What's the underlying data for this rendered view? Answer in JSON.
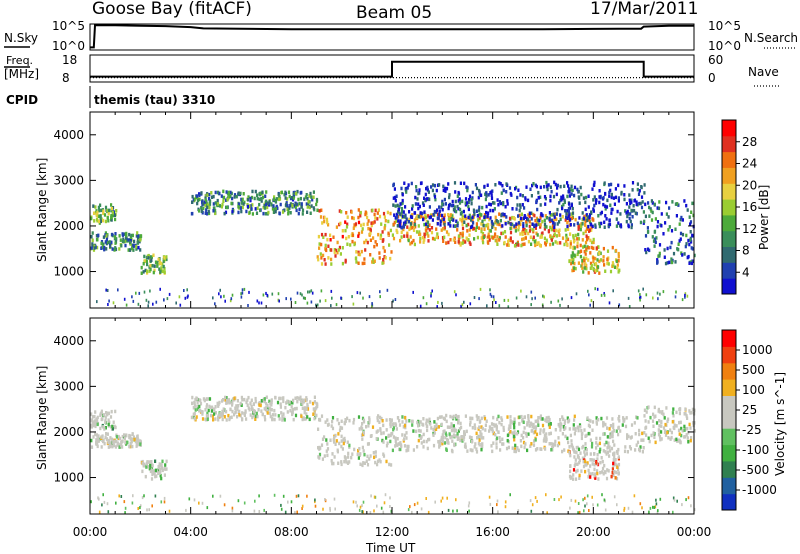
{
  "header": {
    "station": "Goose Bay (fitACF)",
    "beam": "Beam 05",
    "date": "17/Mar/2011"
  },
  "noise_panel": {
    "left_label": "N.Sky",
    "left_ticks": [
      "10^5",
      "10^0"
    ],
    "right_label": "N.Search",
    "right_ticks": [
      "10^5",
      "10^0"
    ]
  },
  "freq_panel": {
    "left_label_1": "Freq.",
    "left_label_2": "[MHz]",
    "left_ticks": [
      "18",
      "8"
    ],
    "right_label": "Nave",
    "right_ticks": [
      "60",
      "0"
    ]
  },
  "cpid": {
    "label": "CPID",
    "value": "themis (tau) 3310"
  },
  "chart_data": [
    {
      "type": "line",
      "title": "N.Sky / N.Search",
      "x_unit": "hours UT",
      "series": [
        {
          "name": "N.Sky",
          "x": [
            0,
            0.15,
            0.2,
            1,
            2,
            3,
            4,
            4.5,
            6,
            8,
            10,
            12,
            14,
            16,
            18,
            20,
            21,
            21.9,
            22,
            23,
            24
          ],
          "y": [
            0.1,
            0.1,
            0.95,
            0.95,
            0.93,
            0.92,
            0.88,
            0.83,
            0.82,
            0.8,
            0.8,
            0.8,
            0.8,
            0.8,
            0.8,
            0.81,
            0.82,
            0.82,
            0.9,
            0.93,
            0.93
          ]
        }
      ]
    },
    {
      "type": "line",
      "title": "Freq / Nave",
      "x_unit": "hours UT",
      "series": [
        {
          "name": "Freq",
          "x": [
            0,
            12,
            12,
            22,
            22,
            24
          ],
          "y": [
            10,
            10,
            15.5,
            15.5,
            10,
            10
          ]
        },
        {
          "name": "Nave",
          "x": [
            0,
            24
          ],
          "y": [
            10,
            10
          ]
        }
      ]
    },
    {
      "type": "heatmap",
      "title": "Power [dB]",
      "xlabel": "Time UT",
      "ylabel": "Slant Range [km]",
      "x_ticks": [
        "00:00",
        "04:00",
        "08:00",
        "12:00",
        "16:00",
        "20:00",
        "00:00"
      ],
      "xlim": [
        0,
        24
      ],
      "y_ticks": [
        "1000",
        "2000",
        "3000",
        "4000"
      ],
      "ylim": [
        200,
        4500
      ],
      "colorbar_label": "Power [dB]",
      "colorbar_ticks": [
        "4",
        "8",
        "12",
        "16",
        "20",
        "24",
        "28"
      ],
      "colorbar_colors": [
        "#1010d0",
        "#2040b0",
        "#306a70",
        "#3a8e5a",
        "#4caa3a",
        "#9acd32",
        "#e8d040",
        "#f0a020",
        "#f07010",
        "#e03020",
        "#ff0000"
      ],
      "regions": [
        {
          "t": [
            0,
            1
          ],
          "r": [
            2100,
            2500
          ],
          "level": 0.4
        },
        {
          "t": [
            0,
            2
          ],
          "r": [
            1500,
            1900
          ],
          "level": 0.3
        },
        {
          "t": [
            2,
            3
          ],
          "r": [
            1000,
            1400
          ],
          "level": 0.4
        },
        {
          "t": [
            4,
            9
          ],
          "r": [
            2300,
            2800
          ],
          "level": 0.3
        },
        {
          "t": [
            9,
            12
          ],
          "r": [
            1200,
            2400
          ],
          "level": 0.7
        },
        {
          "t": [
            12,
            20
          ],
          "r": [
            1600,
            2300
          ],
          "level": 0.65
        },
        {
          "t": [
            12,
            22
          ],
          "r": [
            2000,
            3000
          ],
          "level": 0.1
        },
        {
          "t": [
            19,
            21
          ],
          "r": [
            1000,
            1600
          ],
          "level": 0.6
        },
        {
          "t": [
            22,
            24
          ],
          "r": [
            1200,
            2600
          ],
          "level": 0.2
        }
      ]
    },
    {
      "type": "heatmap",
      "title": "Velocity [m s^-1]",
      "xlabel": "Time UT",
      "ylabel": "Slant Range [km]",
      "x_ticks": [
        "00:00",
        "04:00",
        "08:00",
        "12:00",
        "16:00",
        "20:00",
        "00:00"
      ],
      "xlim": [
        0,
        24
      ],
      "y_ticks": [
        "1000",
        "2000",
        "3000",
        "4000"
      ],
      "ylim": [
        200,
        4500
      ],
      "colorbar_label": "Velocity [m s^-1]",
      "colorbar_ticks": [
        "1000",
        "500",
        "100",
        "25",
        "-25",
        "-100",
        "-500",
        "-1000"
      ],
      "colorbar_colors": [
        "#1030c0",
        "#2060a0",
        "#308050",
        "#40b040",
        "#60c060",
        "#c8c8c0",
        "#c8c8c0",
        "#f0b020",
        "#f08010",
        "#f04010",
        "#ff0000"
      ],
      "regions": [
        {
          "t": [
            0,
            1
          ],
          "r": [
            2100,
            2500
          ],
          "level": 0.4
        },
        {
          "t": [
            0,
            2
          ],
          "r": [
            1700,
            2000
          ],
          "level": 0.5
        },
        {
          "t": [
            2,
            3
          ],
          "r": [
            1000,
            1400
          ],
          "level": 0.45
        },
        {
          "t": [
            4,
            9
          ],
          "r": [
            2300,
            2800
          ],
          "level": 0.5
        },
        {
          "t": [
            9,
            12
          ],
          "r": [
            1300,
            2400
          ],
          "level": 0.5
        },
        {
          "t": [
            12,
            22
          ],
          "r": [
            1600,
            2400
          ],
          "level": 0.5
        },
        {
          "t": [
            19,
            21
          ],
          "r": [
            1000,
            1600
          ],
          "level": 0.75
        },
        {
          "t": [
            22,
            24
          ],
          "r": [
            1800,
            2600
          ],
          "level": 0.5
        }
      ]
    }
  ]
}
